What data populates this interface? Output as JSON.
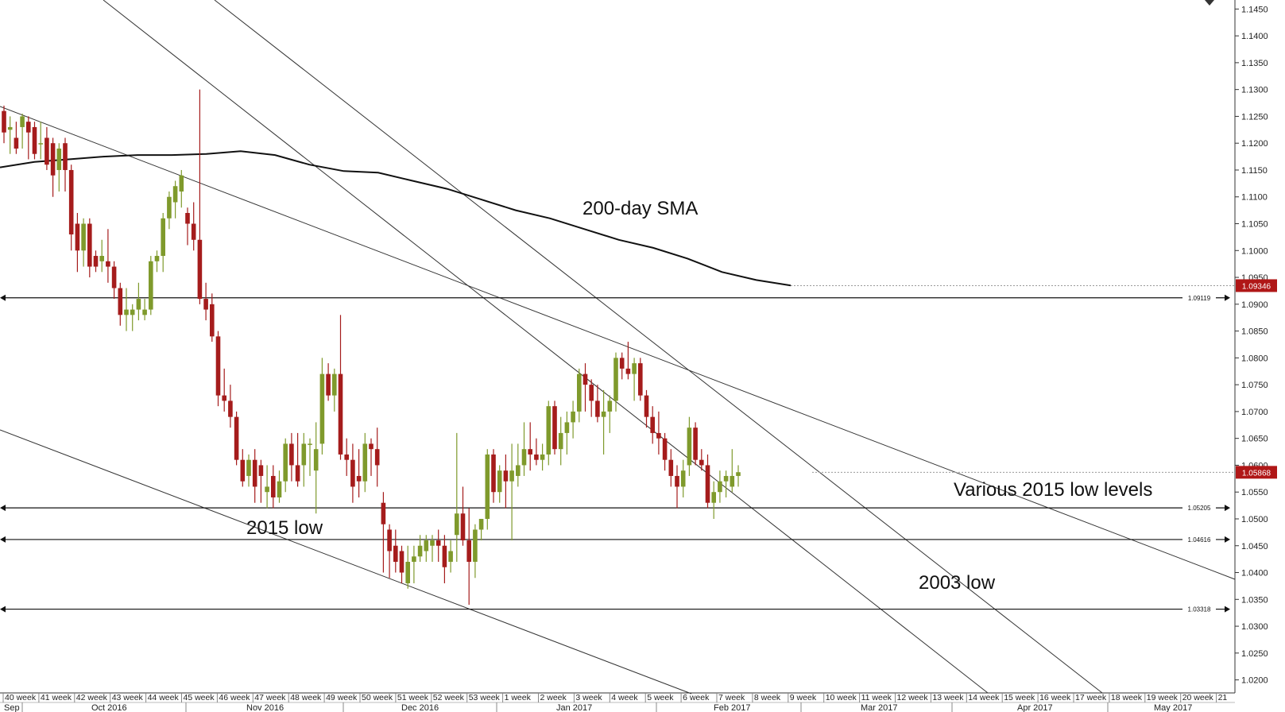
{
  "chart_data": {
    "type": "candlestick",
    "title": "",
    "xlabel": "",
    "ylabel": "",
    "ylim": [
      1.0175,
      1.147
    ],
    "y_ticks": [
      "1.0200",
      "1.0250",
      "1.0300",
      "1.0350",
      "1.0400",
      "1.0450",
      "1.0500",
      "1.0550",
      "1.0600",
      "1.0650",
      "1.0700",
      "1.0750",
      "1.0800",
      "1.0850",
      "1.0900",
      "1.0950",
      "1.1000",
      "1.1050",
      "1.1100",
      "1.1150",
      "1.1200",
      "1.1250",
      "1.1300",
      "1.1350",
      "1.1400",
      "1.1450"
    ],
    "week_labels": [
      "40 week",
      "41 week",
      "42 week",
      "43 week",
      "44 week",
      "45 week",
      "46 week",
      "47 week",
      "48 week",
      "49 week",
      "50 week",
      "51 week",
      "52 week",
      "53 week",
      "1 week",
      "2 week",
      "3 week",
      "4 week",
      "5 week",
      "6 week",
      "7 week",
      "8 week",
      "9 week",
      "10 week",
      "11 week",
      "12 week",
      "13 week",
      "14 week",
      "15 week",
      "16 week",
      "17 week",
      "18 week",
      "19 week",
      "20 week",
      "21"
    ],
    "month_labels": [
      "Sep",
      "Oct 2016",
      "Nov 2016",
      "Dec 2016",
      "Jan 2017",
      "Feb 2017",
      "Mar 2017",
      "Apr 2017",
      "May 2017"
    ],
    "candles": [
      [
        1.126,
        1.127,
        1.12,
        1.122
      ],
      [
        1.1225,
        1.125,
        1.118,
        1.123
      ],
      [
        1.121,
        1.124,
        1.118,
        1.119
      ],
      [
        1.123,
        1.1255,
        1.119,
        1.125
      ],
      [
        1.124,
        1.125,
        1.117,
        1.122
      ],
      [
        1.123,
        1.124,
        1.117,
        1.118
      ],
      [
        1.12,
        1.124,
        1.117,
        1.12
      ],
      [
        1.121,
        1.123,
        1.115,
        1.116
      ],
      [
        1.12,
        1.121,
        1.11,
        1.114
      ],
      [
        1.115,
        1.12,
        1.111,
        1.119
      ],
      [
        1.12,
        1.121,
        1.111,
        1.115
      ],
      [
        1.115,
        1.116,
        1.1,
        1.103
      ],
      [
        1.105,
        1.107,
        1.096,
        1.1
      ],
      [
        1.1,
        1.106,
        1.097,
        1.105
      ],
      [
        1.105,
        1.106,
        1.095,
        1.097
      ],
      [
        1.099,
        1.1,
        1.096,
        1.097
      ],
      [
        1.098,
        1.102,
        1.096,
        1.099
      ],
      [
        1.098,
        1.104,
        1.094,
        1.097
      ],
      [
        1.097,
        1.098,
        1.091,
        1.093
      ],
      [
        1.093,
        1.094,
        1.086,
        1.088
      ],
      [
        1.088,
        1.093,
        1.085,
        1.089
      ],
      [
        1.088,
        1.09,
        1.085,
        1.089
      ],
      [
        1.089,
        1.094,
        1.087,
        1.091
      ],
      [
        1.088,
        1.091,
        1.087,
        1.089
      ],
      [
        1.089,
        1.099,
        1.088,
        1.098
      ],
      [
        1.098,
        1.1,
        1.096,
        1.099
      ],
      [
        1.099,
        1.107,
        1.096,
        1.106
      ],
      [
        1.106,
        1.111,
        1.104,
        1.11
      ],
      [
        1.109,
        1.113,
        1.106,
        1.112
      ],
      [
        1.111,
        1.115,
        1.108,
        1.114
      ],
      [
        1.107,
        1.108,
        1.101,
        1.105
      ],
      [
        1.105,
        1.109,
        1.1,
        1.102
      ],
      [
        1.102,
        1.13,
        1.09,
        1.091
      ],
      [
        1.091,
        1.094,
        1.087,
        1.089
      ],
      [
        1.09,
        1.092,
        1.083,
        1.084
      ],
      [
        1.084,
        1.085,
        1.071,
        1.073
      ],
      [
        1.073,
        1.078,
        1.07,
        1.072
      ],
      [
        1.072,
        1.075,
        1.067,
        1.069
      ],
      [
        1.069,
        1.07,
        1.06,
        1.061
      ],
      [
        1.061,
        1.063,
        1.056,
        1.057
      ],
      [
        1.058,
        1.062,
        1.056,
        1.061
      ],
      [
        1.061,
        1.063,
        1.053,
        1.056
      ],
      [
        1.06,
        1.061,
        1.053,
        1.058
      ],
      [
        1.055,
        1.06,
        1.052,
        1.056
      ],
      [
        1.058,
        1.06,
        1.052,
        1.054
      ],
      [
        1.054,
        1.059,
        1.053,
        1.057
      ],
      [
        1.057,
        1.065,
        1.055,
        1.064
      ],
      [
        1.064,
        1.066,
        1.057,
        1.06
      ],
      [
        1.06,
        1.066,
        1.056,
        1.057
      ],
      [
        1.06,
        1.066,
        1.056,
        1.064
      ],
      [
        1.064,
        1.065,
        1.058,
        1.064
      ],
      [
        1.059,
        1.068,
        1.051,
        1.063
      ],
      [
        1.064,
        1.08,
        1.062,
        1.077
      ],
      [
        1.077,
        1.079,
        1.072,
        1.073
      ],
      [
        1.073,
        1.078,
        1.07,
        1.077
      ],
      [
        1.077,
        1.088,
        1.061,
        1.062
      ],
      [
        1.062,
        1.065,
        1.058,
        1.061
      ],
      [
        1.061,
        1.064,
        1.053,
        1.056
      ],
      [
        1.058,
        1.063,
        1.054,
        1.057
      ],
      [
        1.057,
        1.066,
        1.055,
        1.064
      ],
      [
        1.064,
        1.065,
        1.058,
        1.063
      ],
      [
        1.063,
        1.067,
        1.056,
        1.06
      ],
      [
        1.053,
        1.055,
        1.04,
        1.049
      ],
      [
        1.048,
        1.049,
        1.039,
        1.044
      ],
      [
        1.045,
        1.048,
        1.04,
        1.042
      ],
      [
        1.044,
        1.045,
        1.038,
        1.04
      ],
      [
        1.038,
        1.045,
        1.037,
        1.042
      ],
      [
        1.042,
        1.045,
        1.038,
        1.043
      ],
      [
        1.043,
        1.047,
        1.042,
        1.045
      ],
      [
        1.044,
        1.047,
        1.042,
        1.046
      ],
      [
        1.045,
        1.047,
        1.042,
        1.046
      ],
      [
        1.046,
        1.048,
        1.042,
        1.045
      ],
      [
        1.045,
        1.047,
        1.038,
        1.041
      ],
      [
        1.042,
        1.046,
        1.04,
        1.044
      ],
      [
        1.047,
        1.066,
        1.042,
        1.051
      ],
      [
        1.051,
        1.056,
        1.045,
        1.046
      ],
      [
        1.046,
        1.052,
        1.034,
        1.042
      ],
      [
        1.042,
        1.049,
        1.039,
        1.048
      ],
      [
        1.048,
        1.05,
        1.046,
        1.05
      ],
      [
        1.05,
        1.063,
        1.048,
        1.062
      ],
      [
        1.062,
        1.063,
        1.053,
        1.055
      ],
      [
        1.055,
        1.06,
        1.053,
        1.059
      ],
      [
        1.059,
        1.062,
        1.052,
        1.057
      ],
      [
        1.057,
        1.064,
        1.046,
        1.059
      ],
      [
        1.058,
        1.064,
        1.056,
        1.06
      ],
      [
        1.06,
        1.068,
        1.058,
        1.063
      ],
      [
        1.063,
        1.068,
        1.059,
        1.062
      ],
      [
        1.062,
        1.065,
        1.06,
        1.061
      ],
      [
        1.061,
        1.064,
        1.059,
        1.062
      ],
      [
        1.062,
        1.072,
        1.06,
        1.071
      ],
      [
        1.071,
        1.072,
        1.062,
        1.063
      ],
      [
        1.063,
        1.069,
        1.06,
        1.066
      ],
      [
        1.066,
        1.07,
        1.062,
        1.068
      ],
      [
        1.068,
        1.072,
        1.065,
        1.07
      ],
      [
        1.07,
        1.078,
        1.068,
        1.077
      ],
      [
        1.077,
        1.079,
        1.07,
        1.075
      ],
      [
        1.075,
        1.076,
        1.069,
        1.072
      ],
      [
        1.072,
        1.075,
        1.068,
        1.069
      ],
      [
        1.069,
        1.074,
        1.062,
        1.07
      ],
      [
        1.07,
        1.073,
        1.066,
        1.072
      ],
      [
        1.072,
        1.081,
        1.07,
        1.08
      ],
      [
        1.08,
        1.081,
        1.076,
        1.078
      ],
      [
        1.078,
        1.083,
        1.076,
        1.077
      ],
      [
        1.077,
        1.08,
        1.072,
        1.079
      ],
      [
        1.079,
        1.08,
        1.072,
        1.073
      ],
      [
        1.073,
        1.074,
        1.067,
        1.069
      ],
      [
        1.069,
        1.071,
        1.064,
        1.066
      ],
      [
        1.066,
        1.07,
        1.062,
        1.065
      ],
      [
        1.065,
        1.066,
        1.059,
        1.061
      ],
      [
        1.061,
        1.063,
        1.056,
        1.058
      ],
      [
        1.058,
        1.06,
        1.052,
        1.056
      ],
      [
        1.056,
        1.061,
        1.054,
        1.059
      ],
      [
        1.06,
        1.069,
        1.058,
        1.067
      ],
      [
        1.067,
        1.068,
        1.06,
        1.061
      ],
      [
        1.061,
        1.063,
        1.059,
        1.06
      ],
      [
        1.06,
        1.062,
        1.052,
        1.053
      ],
      [
        1.053,
        1.057,
        1.05,
        1.055
      ],
      [
        1.055,
        1.059,
        1.053,
        1.057
      ],
      [
        1.057,
        1.059,
        1.054,
        1.058
      ],
      [
        1.056,
        1.063,
        1.055,
        1.058
      ],
      [
        1.058,
        1.06,
        1.056,
        1.0587
      ]
    ],
    "sma_200": [
      [
        1.1155
      ],
      [
        1.1165
      ],
      [
        1.117
      ],
      [
        1.1175
      ],
      [
        1.1178
      ],
      [
        1.1178
      ],
      [
        1.118
      ],
      [
        1.1185
      ],
      [
        1.1178
      ],
      [
        1.116
      ],
      [
        1.1148
      ],
      [
        1.1145
      ],
      [
        1.113
      ],
      [
        1.1115
      ],
      [
        1.1095
      ],
      [
        1.1075
      ],
      [
        1.106
      ],
      [
        1.104
      ],
      [
        1.102
      ],
      [
        1.1005
      ],
      [
        1.0985
      ],
      [
        1.096
      ],
      [
        1.0945
      ],
      [
        1.0935
      ]
    ],
    "horizontal_levels": [
      {
        "value": 1.09119,
        "label": "1.09119"
      },
      {
        "value": 1.05205,
        "label": "1.05205"
      },
      {
        "value": 1.04616,
        "label": "1.04616"
      },
      {
        "value": 1.03318,
        "label": "1.03318"
      }
    ],
    "price_markers": [
      {
        "value": 1.09346,
        "label": "1.09346"
      },
      {
        "value": 1.05868,
        "label": "1.05868"
      }
    ],
    "annotations": [
      "200-day SMA",
      "Various 2015 low levels",
      "2015 low",
      "2003 low"
    ],
    "colors": {
      "bull": "#7f9a2c",
      "bear": "#a51c1c",
      "marker": "#b01717"
    }
  }
}
